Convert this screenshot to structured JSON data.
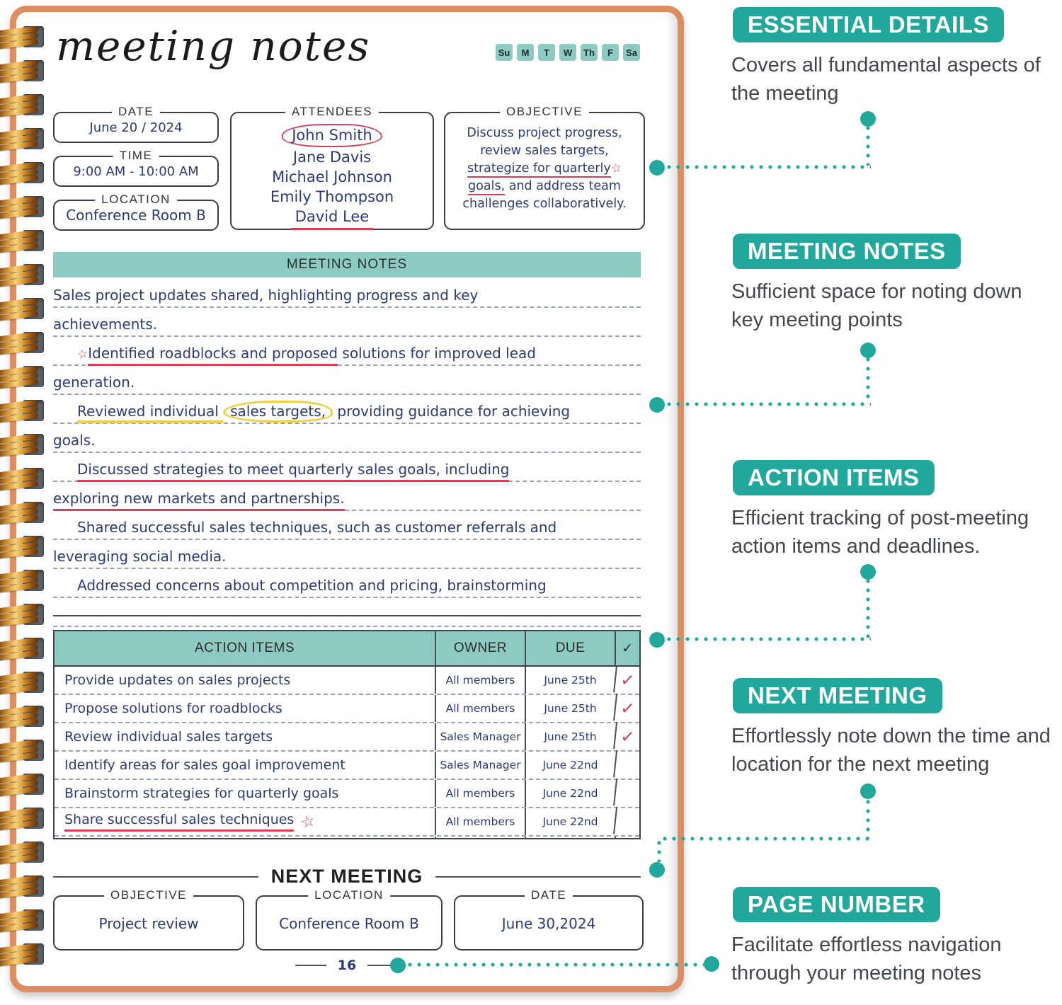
{
  "colors": {
    "accent_teal": "#21a79b",
    "light_teal": "#8ecac4",
    "ink_blue": "#2e3a74",
    "marker_red": "#d84059",
    "marker_yellow": "#edd23e",
    "cover_orange": "#dc8e62"
  },
  "page": {
    "title": "meeting notes",
    "weekdays": [
      "Su",
      "M",
      "T",
      "W",
      "Th",
      "F",
      "Sa"
    ],
    "info": {
      "date": {
        "label": "DATE",
        "value": "June 20 / 2024"
      },
      "time": {
        "label": "TIME",
        "value": "9:00 AM - 10:00 AM"
      },
      "location": {
        "label": "LOCATION",
        "value": "Conference Room B"
      },
      "attendees": {
        "label": "ATTENDEES",
        "names": [
          "John Smith",
          "Jane Davis",
          "Michael Johnson",
          "Emily Thompson",
          "David Lee"
        ]
      },
      "objective": {
        "label": "OBJECTIVE",
        "pre": "Discuss project progress, review sales targets, ",
        "underlined_1": "strategize for quarterly",
        "star": "☆",
        "underlined_2": "goals,",
        "post": " and address team challenges collaboratively."
      }
    },
    "notes": {
      "header": "MEETING NOTES",
      "lines": [
        {
          "text": "Sales project updates shared, highlighting progress and key"
        },
        {
          "text": "achievements."
        },
        {
          "star": "☆",
          "underline": "Identified roadblocks and proposed",
          "rest": " solutions for improved lead"
        },
        {
          "text": "generation."
        },
        {
          "yellow_underline": "Reviewed individual ",
          "yellow_circle": "sales targets,",
          "rest": " providing guidance for achieving"
        },
        {
          "text": "goals."
        },
        {
          "red_underline": "Discussed strategies to meet quarterly sales goals, including"
        },
        {
          "red_underline": "exploring new markets and partnerships."
        },
        {
          "text": "Shared successful sales techniques, such as customer referrals and"
        },
        {
          "text": "leveraging social media."
        },
        {
          "text": "Addressed concerns about competition and pricing, brainstorming"
        }
      ]
    },
    "action_table": {
      "headers": {
        "items": "ACTION ITEMS",
        "owner": "OWNER",
        "due": "DUE",
        "check": "✓"
      },
      "rows": [
        {
          "task": "Provide updates on sales projects",
          "owner": "All members",
          "due": "June 25th",
          "check": "✓"
        },
        {
          "task": "Propose solutions for roadblocks",
          "owner": "All members",
          "due": "June 25th",
          "check": "✓"
        },
        {
          "task": "Review individual sales targets",
          "owner": "Sales Manager",
          "due": "June 25th",
          "check": "✓"
        },
        {
          "task": "Identify areas for sales goal improvement",
          "owner": "Sales Manager",
          "due": "June 22nd",
          "check": ""
        },
        {
          "task": "Brainstorm strategies for quarterly goals",
          "owner": "All members",
          "due": "June 22nd",
          "check": ""
        },
        {
          "task": "Share successful sales techniques",
          "star": "☆",
          "owner": "All members",
          "due": "June 22nd",
          "check": ""
        }
      ]
    },
    "next_meeting": {
      "header": "NEXT MEETING",
      "objective": {
        "label": "OBJECTIVE",
        "value": "Project review"
      },
      "location": {
        "label": "LOCATION",
        "value": "Conference Room B"
      },
      "date": {
        "label": "DATE",
        "value": "June 30,2024"
      }
    },
    "page_number": "16"
  },
  "annotations": [
    {
      "title": "ESSENTIAL DETAILS",
      "desc": "Covers all fundamental aspects of the meeting"
    },
    {
      "title": "MEETING NOTES",
      "desc": "Sufficient space for noting down key meeting points"
    },
    {
      "title": "ACTION ITEMS",
      "desc": "Efficient tracking of post-meeting action items and deadlines."
    },
    {
      "title": "NEXT MEETING",
      "desc": "Effortlessly note down the time and location for the next meeting"
    },
    {
      "title": "PAGE NUMBER",
      "desc": "Facilitate effortless navigation through your meeting notes"
    }
  ]
}
